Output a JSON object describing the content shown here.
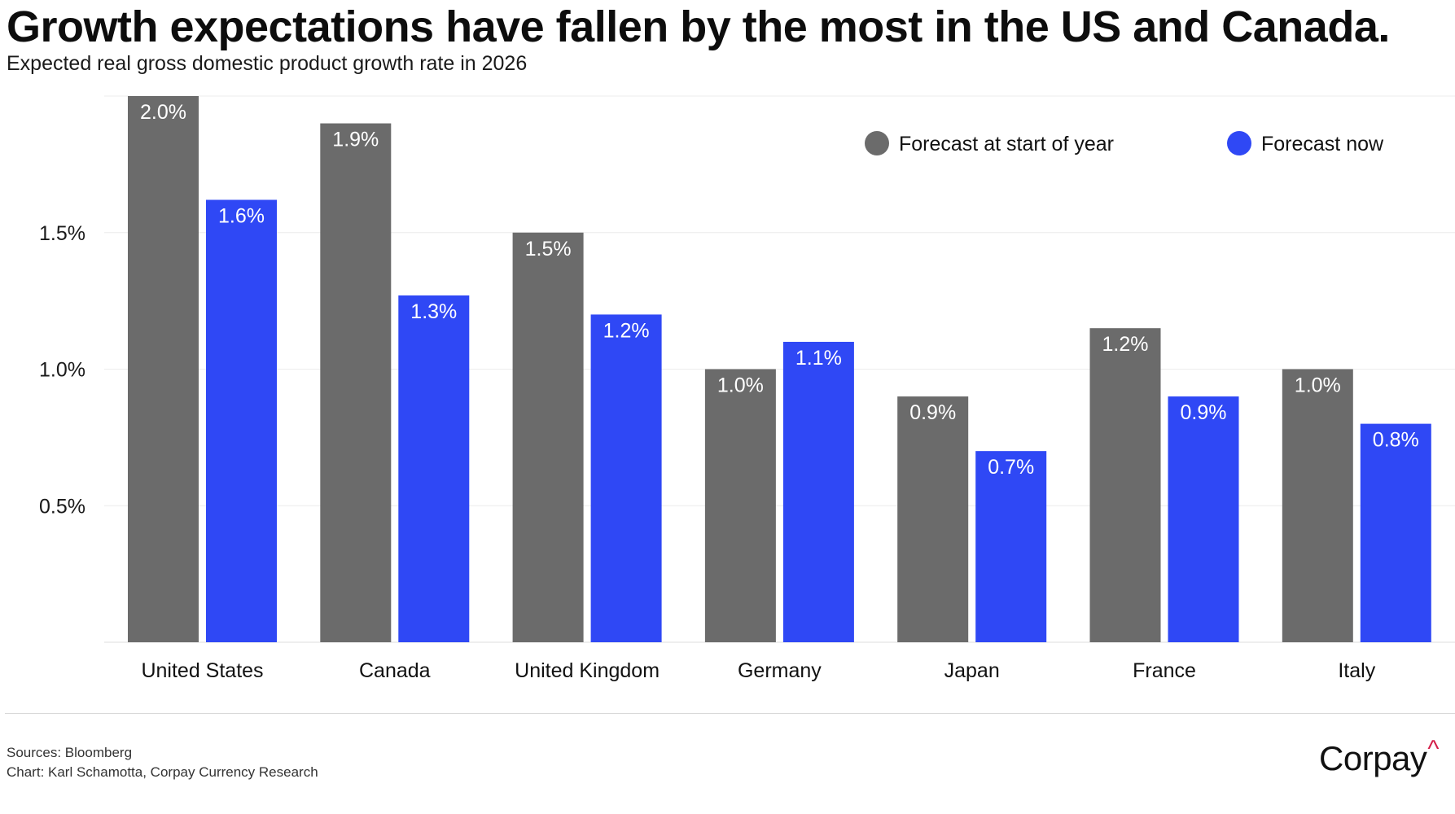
{
  "title": "Growth expectations have fallen by the most in the US and Canada.",
  "subtitle": "Expected real gross domestic product growth rate in 2026",
  "colors": {
    "forecast_start": "#6b6b6b",
    "forecast_now": "#2f48f5",
    "gridline": "#ececec",
    "brand_accent": "#d4204a"
  },
  "chart_data": {
    "type": "bar",
    "categories": [
      "United States",
      "Canada",
      "United Kingdom",
      "Germany",
      "Japan",
      "France",
      "Italy"
    ],
    "series": [
      {
        "name": "Forecast at start of year",
        "values": [
          2.0,
          1.9,
          1.5,
          1.0,
          0.9,
          1.15,
          1.0
        ],
        "labels": [
          "2.0%",
          "1.9%",
          "1.5%",
          "1.0%",
          "0.9%",
          "1.2%",
          "1.0%"
        ]
      },
      {
        "name": "Forecast now",
        "values": [
          1.62,
          1.27,
          1.2,
          1.1,
          0.7,
          0.9,
          0.8
        ],
        "labels": [
          "1.6%",
          "1.3%",
          "1.2%",
          "1.1%",
          "0.7%",
          "0.9%",
          "0.8%"
        ]
      }
    ],
    "yticks": [
      0.5,
      1.0,
      1.5
    ],
    "ytick_labels": [
      "0.5%",
      "1.0%",
      "1.5%"
    ],
    "ylim": [
      0,
      2.0
    ],
    "grid": true,
    "legend_position": "top-right",
    "xlabel": "",
    "ylabel": ""
  },
  "footer": {
    "source": "Sources: Bloomberg",
    "credit": "Chart: Karl Schamotta, Corpay Currency Research"
  },
  "brand": {
    "name": "Corpay",
    "mark": "^"
  }
}
